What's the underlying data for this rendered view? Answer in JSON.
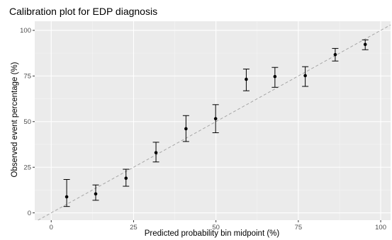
{
  "chart_data": {
    "type": "scatter",
    "title": "Calibration plot for EDP diagnosis",
    "xlabel": "Predicted probability bin midpoint (%)",
    "ylabel": "Observed event percentage (%)",
    "xlim": [
      -5,
      103
    ],
    "ylim": [
      -4,
      105
    ],
    "xticks": [
      0,
      25,
      50,
      75,
      100
    ],
    "yticks": [
      0,
      25,
      50,
      75,
      100
    ],
    "grid": true,
    "reference_line": {
      "from": [
        0,
        0
      ],
      "to": [
        100,
        100
      ],
      "style": "dashed"
    },
    "points": [
      {
        "x": 4.7,
        "y": 8.8,
        "lower": 3.5,
        "upper": 18.3
      },
      {
        "x": 13.5,
        "y": 10.4,
        "lower": 6.9,
        "upper": 15.3
      },
      {
        "x": 22.7,
        "y": 19.0,
        "lower": 14.6,
        "upper": 23.9
      },
      {
        "x": 31.8,
        "y": 33.0,
        "lower": 27.9,
        "upper": 38.7
      },
      {
        "x": 40.9,
        "y": 46.1,
        "lower": 39.1,
        "upper": 53.3
      },
      {
        "x": 49.9,
        "y": 51.6,
        "lower": 43.9,
        "upper": 59.3
      },
      {
        "x": 59.2,
        "y": 73.2,
        "lower": 66.9,
        "upper": 78.8
      },
      {
        "x": 67.9,
        "y": 74.7,
        "lower": 68.8,
        "upper": 79.7
      },
      {
        "x": 77.1,
        "y": 75.2,
        "lower": 69.3,
        "upper": 80.1
      },
      {
        "x": 86.2,
        "y": 86.7,
        "lower": 83.2,
        "upper": 90.1
      },
      {
        "x": 95.3,
        "y": 92.3,
        "lower": 89.4,
        "upper": 94.8
      }
    ],
    "colors": {
      "panel": "#ebebeb",
      "grid_major": "#ffffff",
      "grid_minor": "#f5f5f5",
      "reference_line": "#a6a6a6",
      "points": "#000000",
      "tick_label": "#4d4d4d"
    }
  }
}
